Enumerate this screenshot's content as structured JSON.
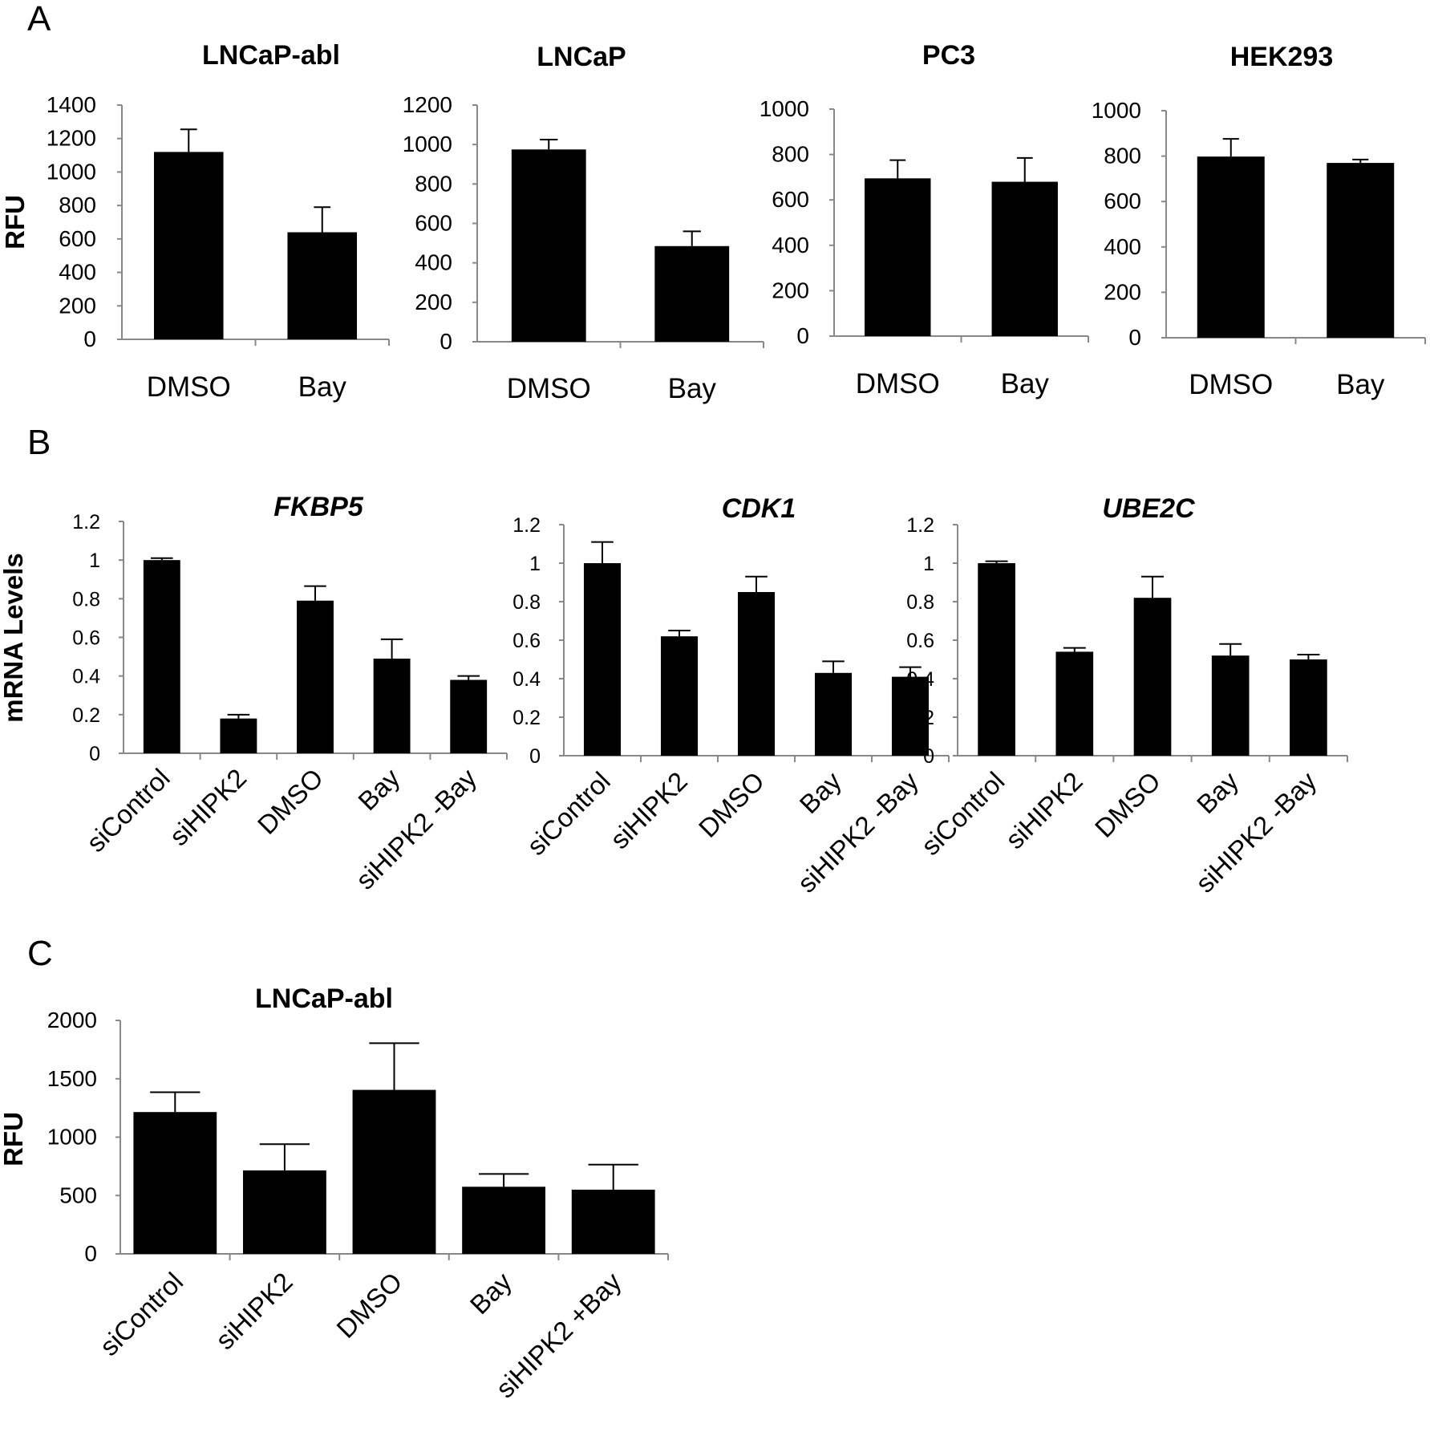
{
  "panels": [
    {
      "id": "A",
      "letter": "A"
    },
    {
      "id": "B",
      "letter": "B"
    },
    {
      "id": "C",
      "letter": "C"
    }
  ],
  "chart_data": [
    {
      "panel": "A",
      "type": "bar",
      "title": "LNCaP-abl",
      "title_italic": false,
      "ylabel": "RFU",
      "categories": [
        "DMSO",
        "Bay"
      ],
      "values": [
        1120,
        640
      ],
      "errors": [
        135,
        150
      ],
      "ylim": [
        0,
        1400
      ],
      "yticks": [
        0,
        200,
        400,
        600,
        800,
        1000,
        1200,
        1400
      ],
      "xlabel_rotated": false
    },
    {
      "panel": "A",
      "type": "bar",
      "title": "LNCaP",
      "title_italic": false,
      "ylabel": "",
      "categories": [
        "DMSO",
        "Bay"
      ],
      "values": [
        975,
        485
      ],
      "errors": [
        50,
        75
      ],
      "ylim": [
        0,
        1200
      ],
      "yticks": [
        0,
        200,
        400,
        600,
        800,
        1000,
        1200
      ],
      "xlabel_rotated": false
    },
    {
      "panel": "A",
      "type": "bar",
      "title": "PC3",
      "title_italic": false,
      "ylabel": "",
      "categories": [
        "DMSO",
        "Bay"
      ],
      "values": [
        695,
        680
      ],
      "errors": [
        80,
        105
      ],
      "ylim": [
        0,
        1000
      ],
      "yticks": [
        0,
        200,
        400,
        600,
        800,
        1000
      ],
      "xlabel_rotated": false
    },
    {
      "panel": "A",
      "type": "bar",
      "title": "HEK293",
      "title_italic": false,
      "ylabel": "",
      "categories": [
        "DMSO",
        "Bay"
      ],
      "values": [
        798,
        770
      ],
      "errors": [
        78,
        15
      ],
      "ylim": [
        0,
        1000
      ],
      "yticks": [
        0,
        200,
        400,
        600,
        800,
        1000
      ],
      "xlabel_rotated": false
    },
    {
      "panel": "B",
      "type": "bar",
      "title": "FKBP5",
      "title_italic": true,
      "ylabel": "mRNA Levels",
      "categories": [
        "siControl",
        "siHIPK2",
        "DMSO",
        "Bay",
        "siHIPK2 -Bay"
      ],
      "values": [
        1.0,
        0.18,
        0.79,
        0.49,
        0.38
      ],
      "errors": [
        0.01,
        0.02,
        0.075,
        0.1,
        0.02
      ],
      "ylim": [
        0,
        1.2
      ],
      "yticks": [
        "0",
        "0.2",
        "0.4",
        "0.6",
        "0.8",
        "1",
        "1.2"
      ],
      "xlabel_rotated": true
    },
    {
      "panel": "B",
      "type": "bar",
      "title": "CDK1",
      "title_italic": true,
      "ylabel": "",
      "categories": [
        "siControl",
        "siHIPK2",
        "DMSO",
        "Bay",
        "siHIPK2 -Bay"
      ],
      "values": [
        1.0,
        0.62,
        0.85,
        0.43,
        0.41
      ],
      "errors": [
        0.11,
        0.03,
        0.08,
        0.06,
        0.05
      ],
      "ylim": [
        0,
        1.2
      ],
      "yticks": [
        "0",
        "0.2",
        "0.4",
        "0.6",
        "0.8",
        "1",
        "1.2"
      ],
      "xlabel_rotated": true
    },
    {
      "panel": "B",
      "type": "bar",
      "title": "UBE2C",
      "title_italic": true,
      "ylabel": "",
      "categories": [
        "siControl",
        "siHIPK2",
        "DMSO",
        "Bay",
        "siHIPK2 -Bay"
      ],
      "values": [
        1.0,
        0.54,
        0.82,
        0.52,
        0.5
      ],
      "errors": [
        0.01,
        0.02,
        0.11,
        0.06,
        0.025
      ],
      "ylim": [
        0,
        1.2
      ],
      "yticks": [
        "0",
        "0.2",
        "0.4",
        "0.6",
        "0.8",
        "1",
        "1.2"
      ],
      "xlabel_rotated": true
    },
    {
      "panel": "C",
      "type": "bar",
      "title": "LNCaP-abl",
      "title_italic": false,
      "ylabel": "RFU",
      "categories": [
        "siControl",
        "siHIPK2",
        "DMSO",
        "Bay",
        "siHIPK2 +Bay"
      ],
      "values": [
        1215,
        715,
        1405,
        575,
        550
      ],
      "errors": [
        170,
        225,
        400,
        110,
        215
      ],
      "ylim": [
        0,
        2000
      ],
      "yticks": [
        0,
        500,
        1000,
        1500,
        2000
      ],
      "xlabel_rotated": true
    }
  ]
}
